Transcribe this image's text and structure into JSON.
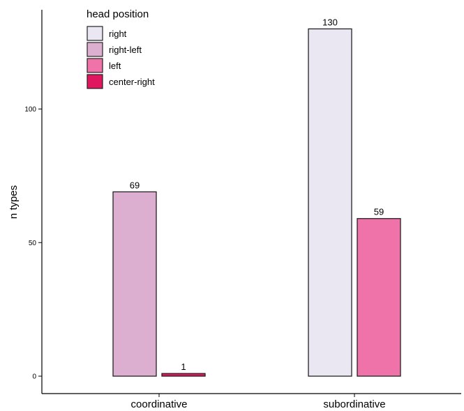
{
  "chart_data": {
    "type": "bar",
    "categories": [
      "coordinative",
      "subordinative"
    ],
    "ylabel": "n types",
    "xlabel": "",
    "ylim": [
      0,
      135
    ],
    "yticks": [
      0,
      50,
      100
    ],
    "grid": false,
    "legend": {
      "title": "head position",
      "placement": "top-left"
    },
    "series": [
      {
        "name": "right",
        "color": "#ebe7f2",
        "values": [
          null,
          130
        ]
      },
      {
        "name": "right-left",
        "color": "#dcaed0",
        "values": [
          69,
          null
        ]
      },
      {
        "name": "left",
        "color": "#ef72a8",
        "values": [
          null,
          59
        ]
      },
      {
        "name": "center-right",
        "color": "#e0165f",
        "values": [
          1,
          null
        ]
      }
    ]
  }
}
